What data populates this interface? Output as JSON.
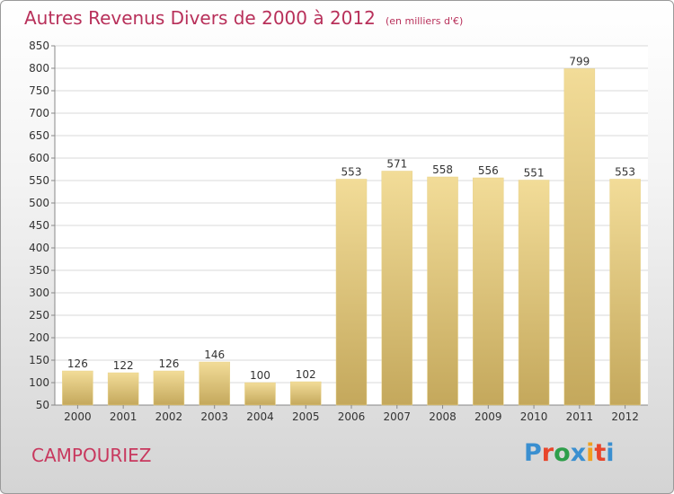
{
  "header": {
    "title": "Autres Revenus Divers de 2000 à 2012",
    "subtitle": "(en milliers d'€)"
  },
  "footer": {
    "commune": "CAMPOURIEZ",
    "brand": "Proxiti",
    "brand_colors": [
      "#3a8fd0",
      "#e8462b",
      "#2e9e4a",
      "#3a8fd0",
      "#f0a020",
      "#e8462b",
      "#3a8fd0"
    ]
  },
  "colors": {
    "title": "#b8305a",
    "bar_top": "#f2dc98",
    "bar_bottom": "#c4a85c",
    "grid": "#d8d8d8",
    "axis": "#888888",
    "text": "#333333"
  },
  "chart_data": {
    "type": "bar",
    "categories": [
      "2000",
      "2001",
      "2002",
      "2003",
      "2004",
      "2005",
      "2006",
      "2007",
      "2008",
      "2009",
      "2010",
      "2011",
      "2012"
    ],
    "values": [
      126,
      122,
      126,
      146,
      100,
      102,
      553,
      571,
      558,
      556,
      551,
      799,
      553
    ],
    "data_labels": [
      "126",
      "122",
      "126",
      "146",
      "100",
      "102",
      "553",
      "571",
      "558",
      "556",
      "551",
      "799",
      "553"
    ],
    "yticks": [
      50,
      100,
      150,
      200,
      250,
      300,
      350,
      400,
      450,
      500,
      550,
      600,
      650,
      700,
      750,
      800,
      850
    ],
    "ylim": [
      50,
      850
    ],
    "grid": true,
    "legend": "none"
  }
}
